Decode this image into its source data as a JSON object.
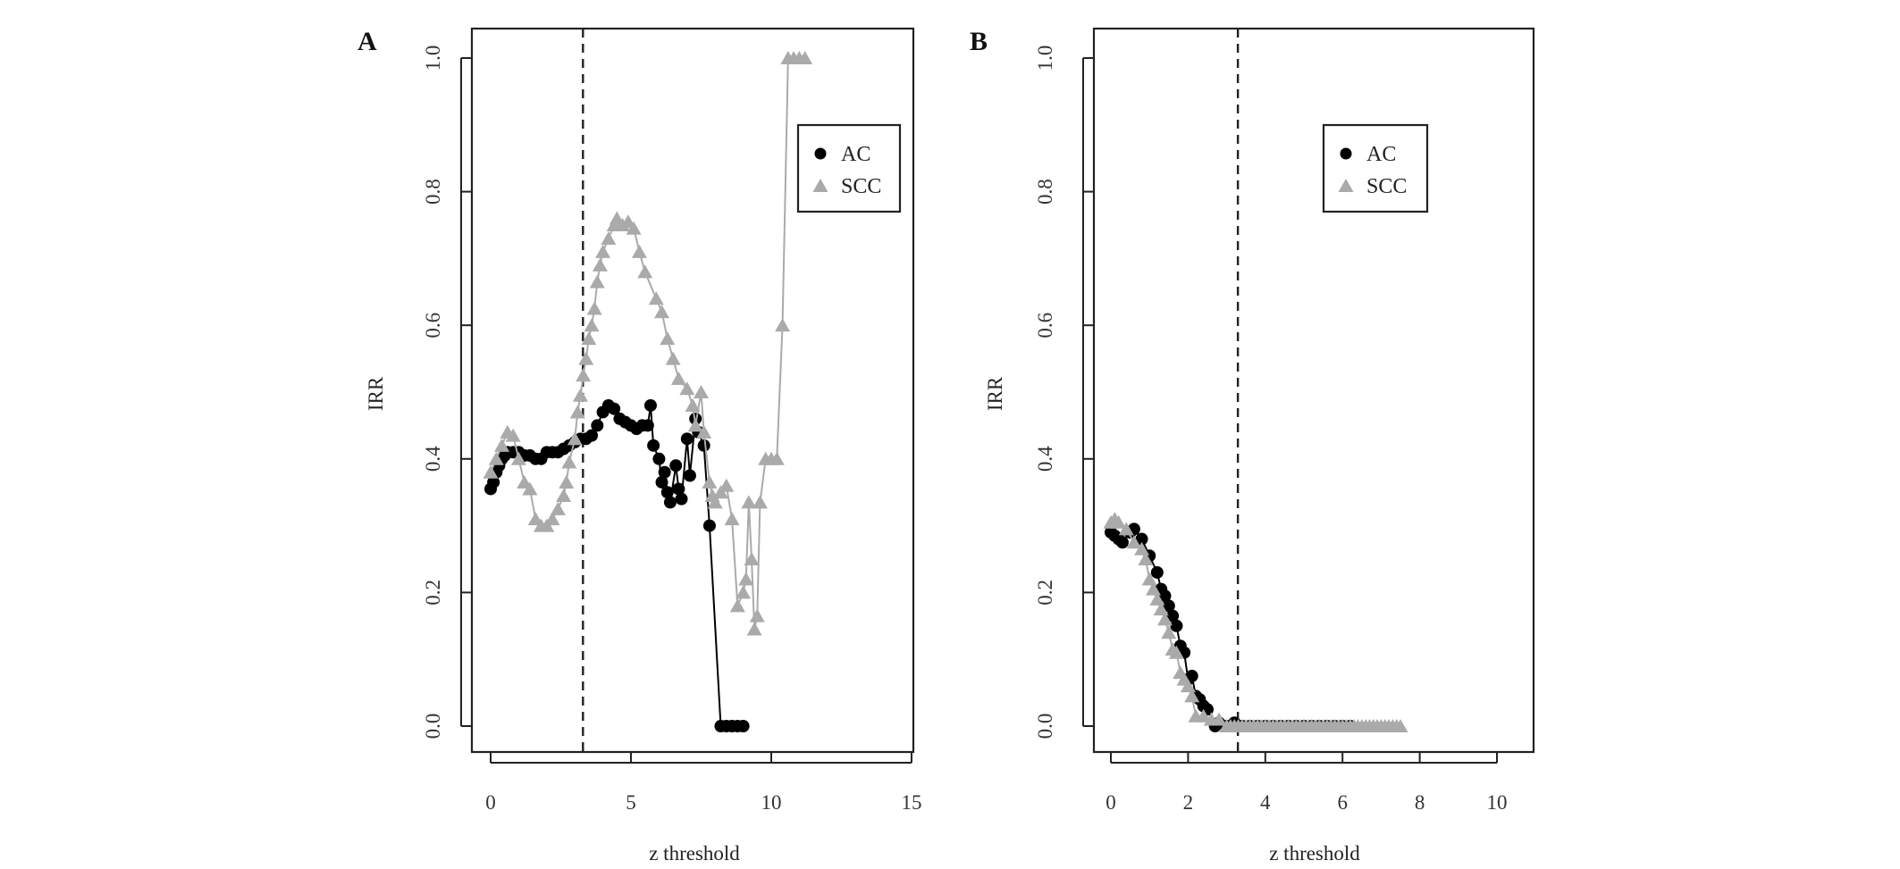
{
  "chart_data": [
    {
      "panel_label": "A",
      "type": "scatter",
      "xlabel": "z threshold",
      "ylabel": "IRR",
      "xlim": [
        0,
        15
      ],
      "ylim": [
        0,
        1
      ],
      "xticks": [
        "0",
        "5",
        "10",
        "15"
      ],
      "yticks": [
        "0.0",
        "0.2",
        "0.4",
        "0.6",
        "0.8",
        "1.0"
      ],
      "grid": false,
      "legend_position": "top-right",
      "threshold_line": 3.29,
      "series": [
        {
          "name": "AC",
          "marker": "circle",
          "color": "#000000",
          "x": [
            0,
            0.1,
            0.2,
            0.3,
            0.4,
            0.5,
            0.6,
            0.8,
            1.0,
            1.2,
            1.4,
            1.6,
            1.8,
            2.0,
            2.2,
            2.4,
            2.6,
            2.8,
            3.0,
            3.2,
            3.4,
            3.6,
            3.8,
            4.0,
            4.2,
            4.4,
            4.6,
            4.8,
            5.0,
            5.2,
            5.4,
            5.6,
            5.7,
            5.8,
            6.0,
            6.1,
            6.2,
            6.3,
            6.4,
            6.6,
            6.7,
            6.8,
            7.0,
            7.1,
            7.3,
            7.4,
            7.6,
            7.8,
            8.2,
            8.4,
            8.6,
            8.8,
            9.0
          ],
          "y": [
            0.355,
            0.365,
            0.38,
            0.39,
            0.4,
            0.405,
            0.41,
            0.41,
            0.41,
            0.405,
            0.405,
            0.4,
            0.4,
            0.41,
            0.41,
            0.41,
            0.415,
            0.42,
            0.425,
            0.43,
            0.43,
            0.435,
            0.45,
            0.47,
            0.48,
            0.475,
            0.46,
            0.455,
            0.45,
            0.445,
            0.45,
            0.45,
            0.48,
            0.42,
            0.4,
            0.365,
            0.38,
            0.35,
            0.335,
            0.39,
            0.355,
            0.34,
            0.43,
            0.375,
            0.46,
            0.44,
            0.42,
            0.3,
            0,
            0,
            0,
            0,
            0
          ]
        },
        {
          "name": "SCC",
          "marker": "triangle",
          "color": "#aaaaaa",
          "x": [
            0,
            0.2,
            0.4,
            0.6,
            0.8,
            1.0,
            1.2,
            1.4,
            1.6,
            1.8,
            2.0,
            2.2,
            2.4,
            2.6,
            2.7,
            2.8,
            3.0,
            3.1,
            3.2,
            3.3,
            3.4,
            3.5,
            3.6,
            3.7,
            3.8,
            3.9,
            4.0,
            4.2,
            4.4,
            4.5,
            4.7,
            4.9,
            5.1,
            5.3,
            5.5,
            5.9,
            6.1,
            6.3,
            6.5,
            6.7,
            7.0,
            7.2,
            7.3,
            7.5,
            7.6,
            7.8,
            7.9,
            8.0,
            8.2,
            8.4,
            8.6,
            8.8,
            9.0,
            9.1,
            9.2,
            9.3,
            9.4,
            9.5,
            9.6,
            9.8,
            10.0,
            10.2,
            10.4,
            10.6,
            10.8,
            11.0,
            11.2
          ],
          "y": [
            0.38,
            0.4,
            0.42,
            0.44,
            0.435,
            0.4,
            0.365,
            0.355,
            0.31,
            0.3,
            0.3,
            0.31,
            0.325,
            0.345,
            0.365,
            0.395,
            0.43,
            0.47,
            0.495,
            0.525,
            0.55,
            0.58,
            0.6,
            0.625,
            0.665,
            0.69,
            0.71,
            0.73,
            0.75,
            0.76,
            0.75,
            0.755,
            0.745,
            0.71,
            0.68,
            0.64,
            0.62,
            0.58,
            0.55,
            0.52,
            0.505,
            0.48,
            0.45,
            0.5,
            0.44,
            0.365,
            0.345,
            0.335,
            0.35,
            0.36,
            0.31,
            0.18,
            0.2,
            0.22,
            0.335,
            0.25,
            0.145,
            0.165,
            0.335,
            0.4,
            0.4,
            0.4,
            0.6,
            1.0,
            1.0,
            1.0,
            1.0
          ]
        }
      ]
    },
    {
      "panel_label": "B",
      "type": "scatter",
      "xlabel": "z threshold",
      "ylabel": "IRR",
      "xlim": [
        0,
        10
      ],
      "ylim": [
        0,
        1
      ],
      "xticks": [
        "0",
        "2",
        "4",
        "6",
        "8",
        "10"
      ],
      "yticks": [
        "0.0",
        "0.2",
        "0.4",
        "0.6",
        "0.8",
        "1.0"
      ],
      "grid": false,
      "legend_position": "top-center",
      "threshold_line": 3.29,
      "series": [
        {
          "name": "AC",
          "marker": "circle",
          "color": "#000000",
          "x": [
            0,
            0.1,
            0.2,
            0.3,
            0.5,
            0.6,
            0.8,
            1.0,
            1.2,
            1.3,
            1.4,
            1.5,
            1.6,
            1.7,
            1.8,
            1.9,
            2.0,
            2.1,
            2.2,
            2.3,
            2.4,
            2.5,
            2.7,
            2.8,
            3.0,
            3.2,
            3.4,
            3.6,
            3.8,
            4.0,
            4.2,
            4.4,
            4.6,
            4.8,
            5.0,
            5.2,
            5.4,
            5.6,
            5.8,
            6.0,
            6.2
          ],
          "y": [
            0.29,
            0.285,
            0.28,
            0.275,
            0.29,
            0.295,
            0.28,
            0.255,
            0.23,
            0.205,
            0.195,
            0.18,
            0.165,
            0.15,
            0.12,
            0.11,
            0.07,
            0.075,
            0.045,
            0.04,
            0.03,
            0.025,
            0,
            0.005,
            0,
            0.005,
            0,
            0,
            0,
            0,
            0,
            0,
            0,
            0,
            0,
            0,
            0,
            0,
            0,
            0,
            0
          ]
        },
        {
          "name": "SCC",
          "marker": "triangle",
          "color": "#aaaaaa",
          "x": [
            0,
            0.1,
            0.2,
            0.4,
            0.6,
            0.8,
            0.9,
            1.0,
            1.1,
            1.2,
            1.3,
            1.4,
            1.5,
            1.6,
            1.7,
            1.8,
            1.9,
            2.0,
            2.1,
            2.2,
            2.4,
            2.6,
            2.8,
            3.0,
            3.1,
            3.2,
            3.3,
            3.4,
            3.5,
            3.6,
            3.7,
            3.8,
            3.9,
            4.0,
            4.1,
            4.2,
            4.3,
            4.4,
            4.5,
            4.6,
            4.7,
            4.8,
            4.9,
            5.0,
            5.1,
            5.2,
            5.3,
            5.4,
            5.5,
            5.6,
            5.7,
            5.8,
            5.9,
            6.0,
            6.1,
            6.2,
            6.3,
            6.4,
            6.5,
            6.6,
            6.7,
            6.8,
            6.9,
            7.0,
            7.1,
            7.2,
            7.3,
            7.4,
            7.5
          ],
          "y": [
            0.305,
            0.31,
            0.305,
            0.295,
            0.275,
            0.265,
            0.25,
            0.22,
            0.205,
            0.19,
            0.175,
            0.16,
            0.14,
            0.115,
            0.11,
            0.08,
            0.07,
            0.06,
            0.045,
            0.015,
            0.015,
            0.01,
            0.01,
            0,
            0,
            0,
            0,
            0,
            0,
            0,
            0,
            0,
            0,
            0,
            0,
            0,
            0,
            0,
            0,
            0,
            0,
            0,
            0,
            0,
            0,
            0,
            0,
            0,
            0,
            0,
            0,
            0,
            0,
            0,
            0,
            0,
            0,
            0,
            0,
            0,
            0,
            0,
            0,
            0,
            0,
            0,
            0,
            0,
            0
          ]
        }
      ]
    }
  ]
}
